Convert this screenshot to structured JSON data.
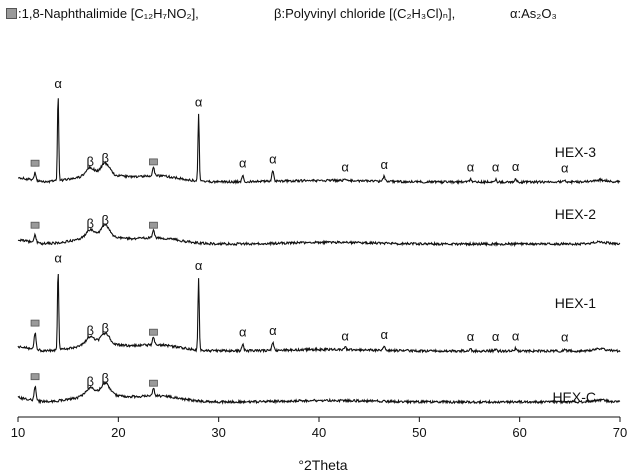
{
  "legend": {
    "square_text": ":1,8-Naphthalimide [C₁₂H₇NO₂],",
    "beta_text": "β:Polyvinyl chloride [(C₂H₃Cl)ₙ],",
    "alpha_text": "α:As₂O₃"
  },
  "chart_data": {
    "type": "line",
    "xlabel": "°2Theta",
    "xlim": [
      10,
      70
    ],
    "x_ticks": [
      10,
      20,
      30,
      40,
      50,
      60,
      70
    ],
    "grid": false,
    "colors": {
      "line": "#111111",
      "square": "#9a9a9a"
    },
    "series": [
      {
        "name": "HEX-3",
        "peaks": [
          {
            "x": 11.7,
            "h": 0.6,
            "label": "square"
          },
          {
            "x": 14.0,
            "h": 6.6,
            "label": "alpha"
          },
          {
            "x": 17.2,
            "h": 0.6,
            "label": "beta"
          },
          {
            "x": 18.7,
            "h": 0.9,
            "label": "beta"
          },
          {
            "x": 23.5,
            "h": 0.7,
            "label": "square"
          },
          {
            "x": 28.0,
            "h": 5.2,
            "label": "alpha"
          },
          {
            "x": 32.4,
            "h": 0.5,
            "label": "alpha"
          },
          {
            "x": 35.4,
            "h": 0.8,
            "label": "alpha"
          },
          {
            "x": 42.6,
            "h": 0.2,
            "label": "alpha"
          },
          {
            "x": 46.5,
            "h": 0.4,
            "label": "alpha"
          },
          {
            "x": 55.1,
            "h": 0.2,
            "label": "alpha"
          },
          {
            "x": 57.6,
            "h": 0.2,
            "label": "alpha"
          },
          {
            "x": 59.6,
            "h": 0.25,
            "label": "alpha"
          },
          {
            "x": 64.5,
            "h": 0.1,
            "label": "alpha"
          }
        ]
      },
      {
        "name": "HEX-2",
        "peaks": [
          {
            "x": 11.7,
            "h": 0.6,
            "label": "square"
          },
          {
            "x": 17.2,
            "h": 0.6,
            "label": "beta"
          },
          {
            "x": 18.7,
            "h": 0.9,
            "label": "beta"
          },
          {
            "x": 23.5,
            "h": 0.6,
            "label": "square"
          }
        ]
      },
      {
        "name": "HEX-1",
        "peaks": [
          {
            "x": 11.7,
            "h": 1.3,
            "label": "square"
          },
          {
            "x": 14.0,
            "h": 6.2,
            "label": "alpha"
          },
          {
            "x": 17.2,
            "h": 0.6,
            "label": "beta"
          },
          {
            "x": 18.7,
            "h": 0.8,
            "label": "beta"
          },
          {
            "x": 23.5,
            "h": 0.6,
            "label": "square"
          },
          {
            "x": 28.0,
            "h": 5.6,
            "label": "alpha"
          },
          {
            "x": 32.4,
            "h": 0.5,
            "label": "alpha"
          },
          {
            "x": 35.4,
            "h": 0.6,
            "label": "alpha"
          },
          {
            "x": 42.6,
            "h": 0.2,
            "label": "alpha"
          },
          {
            "x": 46.5,
            "h": 0.3,
            "label": "alpha"
          },
          {
            "x": 55.1,
            "h": 0.15,
            "label": "alpha"
          },
          {
            "x": 57.6,
            "h": 0.15,
            "label": "alpha"
          },
          {
            "x": 59.6,
            "h": 0.2,
            "label": "alpha"
          },
          {
            "x": 64.5,
            "h": 0.1,
            "label": "alpha"
          }
        ]
      },
      {
        "name": "HEX-C",
        "peaks": [
          {
            "x": 11.7,
            "h": 1.1,
            "label": "square"
          },
          {
            "x": 17.2,
            "h": 0.6,
            "label": "beta"
          },
          {
            "x": 18.7,
            "h": 0.9,
            "label": "beta"
          },
          {
            "x": 23.5,
            "h": 0.6,
            "label": "square"
          }
        ]
      }
    ]
  }
}
